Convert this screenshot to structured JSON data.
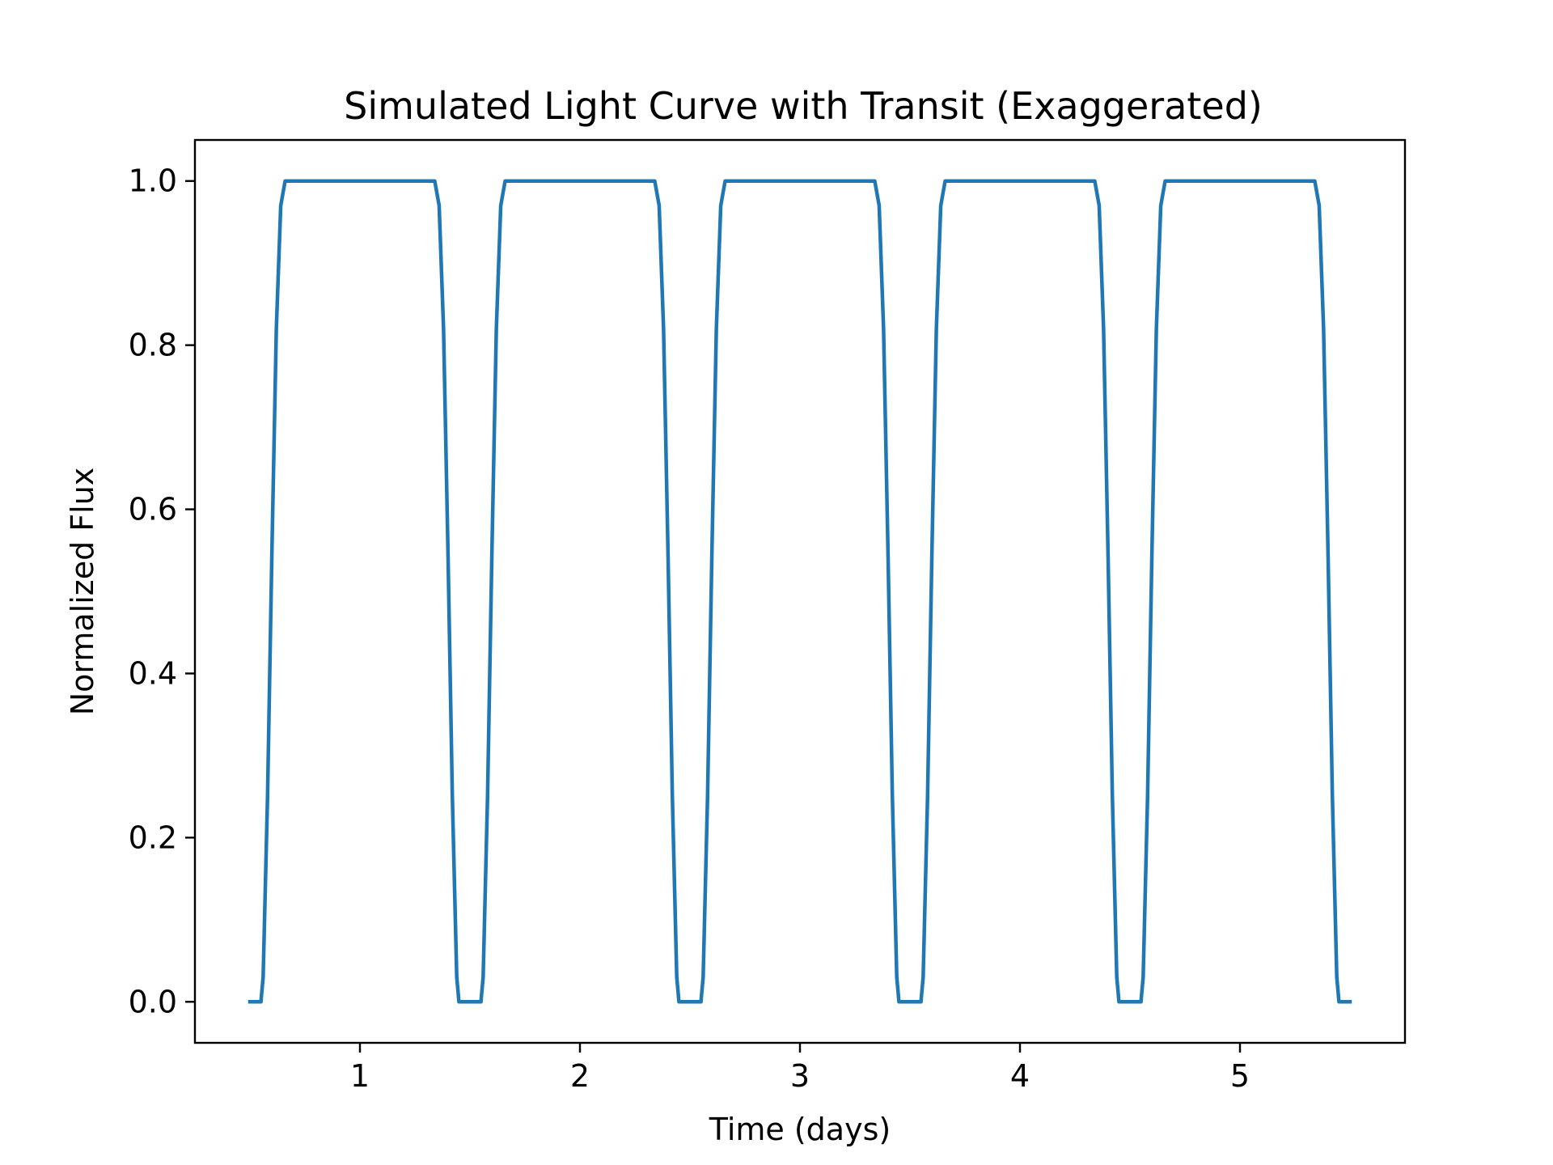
{
  "chart_data": {
    "type": "line",
    "title": "Simulated Light Curve with Transit (Exaggerated)",
    "xlabel": "Time (days)",
    "ylabel": "Normalized Flux",
    "xlim": [
      0.25,
      5.75
    ],
    "ylim": [
      -0.05,
      1.05
    ],
    "xticks": [
      1,
      2,
      3,
      4,
      5
    ],
    "xtick_labels": [
      "1",
      "2",
      "3",
      "4",
      "5"
    ],
    "yticks": [
      0.0,
      0.2,
      0.4,
      0.6,
      0.8,
      1.0
    ],
    "ytick_labels": [
      "0.0",
      "0.2",
      "0.4",
      "0.6",
      "0.8",
      "1.0"
    ],
    "grid": false,
    "legend": "none",
    "colors": {
      "line": "#1f77b4"
    },
    "series": [
      {
        "x": [
          0.5,
          0.55,
          0.56,
          0.58,
          0.6,
          0.62,
          0.64,
          0.66,
          1.34,
          1.36,
          1.38,
          1.4,
          1.42,
          1.44,
          1.45,
          1.55,
          1.56,
          1.58,
          1.6,
          1.62,
          1.64,
          1.66,
          2.34,
          2.36,
          2.38,
          2.4,
          2.42,
          2.44,
          2.45,
          2.55,
          2.56,
          2.58,
          2.6,
          2.62,
          2.64,
          2.66,
          3.34,
          3.36,
          3.38,
          3.4,
          3.42,
          3.44,
          3.45,
          3.55,
          3.56,
          3.58,
          3.6,
          3.62,
          3.64,
          3.66,
          4.34,
          4.36,
          4.38,
          4.4,
          4.42,
          4.44,
          4.45,
          4.55,
          4.56,
          4.58,
          4.6,
          4.62,
          4.64,
          4.66,
          5.34,
          5.36,
          5.38,
          5.4,
          5.42,
          5.44,
          5.45,
          5.5
        ],
        "y": [
          0.0,
          0.0,
          0.03,
          0.25,
          0.55,
          0.82,
          0.97,
          1.0,
          1.0,
          0.97,
          0.82,
          0.55,
          0.25,
          0.03,
          0.0,
          0.0,
          0.03,
          0.25,
          0.55,
          0.82,
          0.97,
          1.0,
          1.0,
          0.97,
          0.82,
          0.55,
          0.25,
          0.03,
          0.0,
          0.0,
          0.03,
          0.25,
          0.55,
          0.82,
          0.97,
          1.0,
          1.0,
          0.97,
          0.82,
          0.55,
          0.25,
          0.03,
          0.0,
          0.0,
          0.03,
          0.25,
          0.55,
          0.82,
          0.97,
          1.0,
          1.0,
          0.97,
          0.82,
          0.55,
          0.25,
          0.03,
          0.0,
          0.0,
          0.03,
          0.25,
          0.55,
          0.82,
          0.97,
          1.0,
          1.0,
          0.97,
          0.82,
          0.55,
          0.25,
          0.03,
          0.0,
          0.0
        ]
      }
    ]
  }
}
